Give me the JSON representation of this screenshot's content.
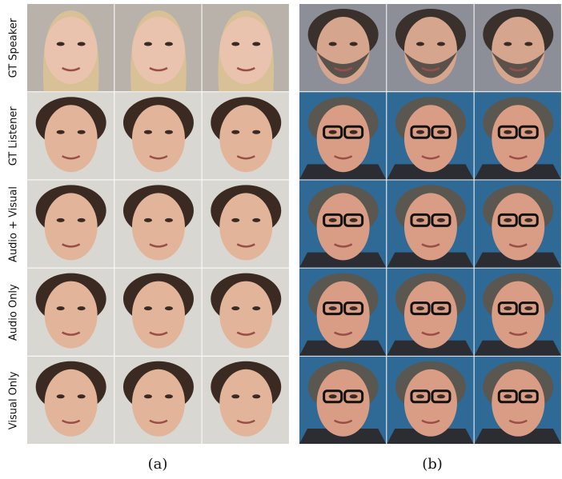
{
  "figure": {
    "row_labels": [
      "GT Speaker",
      "GT Listener",
      "Audio + Visual",
      "Audio Only",
      "Visual Only"
    ],
    "captions": [
      "(a)",
      "(b)"
    ]
  }
}
